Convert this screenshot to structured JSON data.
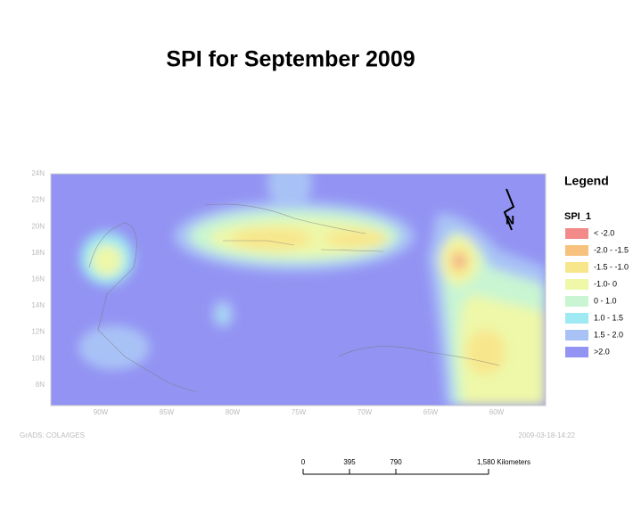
{
  "header": {
    "title": "SPI  for  September 2009"
  },
  "map": {
    "lat_labels": [
      "24N",
      "22N",
      "20N",
      "18N",
      "16N",
      "14N",
      "12N",
      "10N",
      "8N"
    ],
    "lon_labels": [
      "90W",
      "85W",
      "80W",
      "75W",
      "70W",
      "65W",
      "60W"
    ],
    "footer_left": "GrADS: COLA/IGES",
    "footer_right": "2009-03-18-14:22"
  },
  "legend": {
    "title": "Legend",
    "layer": "SPI_1",
    "items": [
      {
        "label": "< -2.0",
        "color": "#f28a8a"
      },
      {
        "label": "-2.0 - -1.5",
        "color": "#f6c27e"
      },
      {
        "label": "-1.5 - -1.0",
        "color": "#f8e68c"
      },
      {
        "label": "-1.0- 0",
        "color": "#eef8a8"
      },
      {
        "label": "0 - 1.0",
        "color": "#c9f5d2"
      },
      {
        "label": "1.0 - 1.5",
        "color": "#9fe9f2"
      },
      {
        "label": "1.5 - 2.0",
        "color": "#a9c2f6"
      },
      {
        "label": ">2.0",
        "color": "#9393f3"
      }
    ]
  },
  "scale_bar": {
    "labels": [
      "0",
      "395",
      "790",
      "1,580 Kilometers"
    ]
  }
}
